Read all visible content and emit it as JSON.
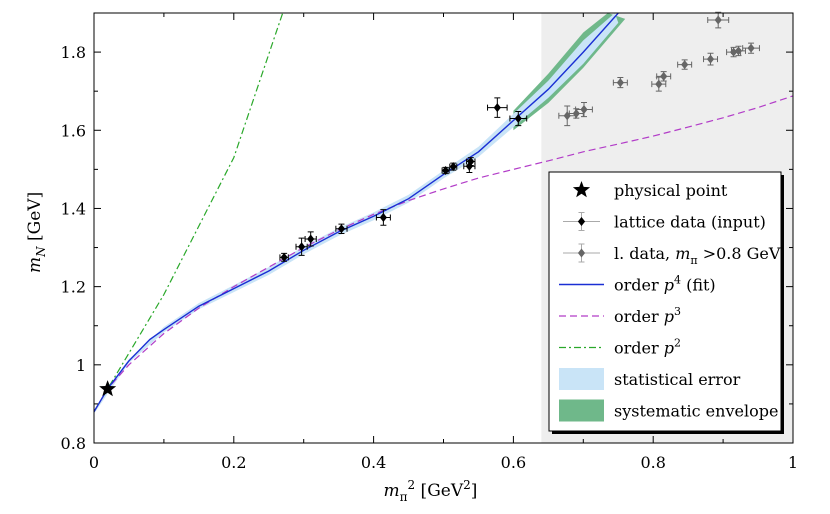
{
  "chart_data": {
    "type": "scatter",
    "xlabel": {
      "main": "m",
      "sub": "π",
      "sup": "2",
      "unit": " [GeV",
      "unit_sup": "2",
      "unit_end": "]"
    },
    "ylabel": {
      "main": "m",
      "sub": "N",
      "unit": "  [GeV]"
    },
    "xlim": [
      0,
      1
    ],
    "ylim": [
      0.8,
      1.9
    ],
    "xticks": [
      "0",
      "0.2",
      "0.4",
      "0.6",
      "0.8",
      "1"
    ],
    "xtick_values": [
      0,
      0.2,
      0.4,
      0.6,
      0.8,
      1.0
    ],
    "yticks": [
      "0.8",
      "1",
      "1.2",
      "1.4",
      "1.6",
      "1.8"
    ],
    "ytick_values": [
      0.8,
      1.0,
      1.2,
      1.4,
      1.6,
      1.8
    ],
    "shaded_region": {
      "x_from": 0.64,
      "x_to": 1.0,
      "color": "#eeeeee"
    },
    "legend_position": "right",
    "legend": [
      {
        "key": "physical",
        "text": "physical point"
      },
      {
        "key": "lattice",
        "text": "lattice data (input)"
      },
      {
        "key": "ldata",
        "text": "l. data, ",
        "italic": "m",
        "sub": "π",
        "tail": " >0.8 GeV"
      },
      {
        "key": "p4",
        "text": "order ",
        "italic": "p",
        "sup": "4",
        "tail": " (fit)"
      },
      {
        "key": "p3",
        "text": "order ",
        "italic": "p",
        "sup": "3",
        "tail": ""
      },
      {
        "key": "p2",
        "text": "order ",
        "italic": "p",
        "sup": "2",
        "tail": ""
      },
      {
        "key": "stat",
        "text": "statistical error"
      },
      {
        "key": "syst",
        "text": "systematic envelope"
      }
    ],
    "colors": {
      "p4": "#1a2fd4",
      "p3": "#b23cc8",
      "p2": "#2aa82a",
      "stat": "#c9e4f7",
      "syst": "#6fb88a",
      "lattice": "#000000",
      "ldata": "#666666",
      "shade": "#eeeeee"
    },
    "physical_point": {
      "x": 0.0195,
      "y": 0.938
    },
    "series": [
      {
        "key": "lattice",
        "points": [
          {
            "x": 0.272,
            "y": 1.275,
            "xerr": 0.006,
            "yerr": 0.01
          },
          {
            "x": 0.297,
            "y": 1.302,
            "xerr": 0.008,
            "yerr": 0.022
          },
          {
            "x": 0.31,
            "y": 1.322,
            "xerr": 0.008,
            "yerr": 0.018
          },
          {
            "x": 0.354,
            "y": 1.348,
            "xerr": 0.008,
            "yerr": 0.012
          },
          {
            "x": 0.414,
            "y": 1.377,
            "xerr": 0.01,
            "yerr": 0.02
          },
          {
            "x": 0.503,
            "y": 1.497,
            "xerr": 0.005,
            "yerr": 0.008
          },
          {
            "x": 0.514,
            "y": 1.507,
            "xerr": 0.005,
            "yerr": 0.009
          },
          {
            "x": 0.537,
            "y": 1.508,
            "xerr": 0.008,
            "yerr": 0.016
          },
          {
            "x": 0.539,
            "y": 1.52,
            "xerr": 0.006,
            "yerr": 0.01
          },
          {
            "x": 0.577,
            "y": 1.658,
            "xerr": 0.014,
            "yerr": 0.025
          },
          {
            "x": 0.607,
            "y": 1.63,
            "xerr": 0.012,
            "yerr": 0.018
          }
        ]
      },
      {
        "key": "ldata",
        "points": [
          {
            "x": 0.677,
            "y": 1.637,
            "xerr": 0.012,
            "yerr": 0.025
          },
          {
            "x": 0.69,
            "y": 1.643,
            "xerr": 0.01,
            "yerr": 0.012
          },
          {
            "x": 0.701,
            "y": 1.653,
            "xerr": 0.012,
            "yerr": 0.018
          },
          {
            "x": 0.753,
            "y": 1.722,
            "xerr": 0.01,
            "yerr": 0.013
          },
          {
            "x": 0.808,
            "y": 1.718,
            "xerr": 0.01,
            "yerr": 0.018
          },
          {
            "x": 0.815,
            "y": 1.738,
            "xerr": 0.01,
            "yerr": 0.012
          },
          {
            "x": 0.845,
            "y": 1.768,
            "xerr": 0.01,
            "yerr": 0.012
          },
          {
            "x": 0.882,
            "y": 1.782,
            "xerr": 0.01,
            "yerr": 0.015
          },
          {
            "x": 0.893,
            "y": 1.882,
            "xerr": 0.015,
            "yerr": 0.02
          },
          {
            "x": 0.915,
            "y": 1.8,
            "xerr": 0.01,
            "yerr": 0.012
          },
          {
            "x": 0.922,
            "y": 1.803,
            "xerr": 0.01,
            "yerr": 0.012
          },
          {
            "x": 0.94,
            "y": 1.81,
            "xerr": 0.012,
            "yerr": 0.013
          }
        ]
      }
    ],
    "curves": {
      "p4": {
        "x": [
          0,
          0.02,
          0.05,
          0.08,
          0.1,
          0.15,
          0.2,
          0.25,
          0.3,
          0.35,
          0.4,
          0.45,
          0.5,
          0.55,
          0.6,
          0.65,
          0.7,
          0.75
        ],
        "y": [
          0.88,
          0.94,
          1.01,
          1.065,
          1.09,
          1.15,
          1.195,
          1.24,
          1.293,
          1.34,
          1.38,
          1.425,
          1.487,
          1.545,
          1.625,
          1.705,
          1.8,
          1.9
        ]
      },
      "p3": {
        "x": [
          0,
          0.02,
          0.05,
          0.1,
          0.15,
          0.2,
          0.25,
          0.3,
          0.35,
          0.4,
          0.45,
          0.5,
          0.55,
          0.6,
          0.65,
          0.7,
          0.75,
          0.8,
          0.85,
          0.9,
          0.95,
          1.0
        ],
        "y": [
          0.88,
          0.94,
          1.0,
          1.08,
          1.145,
          1.2,
          1.25,
          1.3,
          1.345,
          1.385,
          1.42,
          1.45,
          1.478,
          1.5,
          1.522,
          1.545,
          1.565,
          1.585,
          1.608,
          1.632,
          1.658,
          1.688
        ]
      },
      "p2": {
        "x": [
          0,
          0.02,
          0.1,
          0.2,
          0.27
        ],
        "y": [
          0.88,
          0.94,
          1.18,
          1.53,
          1.9
        ]
      },
      "stat_upper": {
        "x": [
          0,
          0.05,
          0.1,
          0.15,
          0.2,
          0.25,
          0.3,
          0.35,
          0.4,
          0.45,
          0.5,
          0.55,
          0.6,
          0.65,
          0.7,
          0.745
        ],
        "y": [
          0.885,
          1.015,
          1.097,
          1.158,
          1.204,
          1.25,
          1.303,
          1.35,
          1.39,
          1.435,
          1.497,
          1.558,
          1.642,
          1.727,
          1.83,
          1.9
        ]
      },
      "stat_lower": {
        "x": [
          0,
          0.05,
          0.1,
          0.15,
          0.2,
          0.25,
          0.3,
          0.35,
          0.4,
          0.45,
          0.5,
          0.55,
          0.6,
          0.65,
          0.7,
          0.75
        ],
        "y": [
          0.875,
          1.005,
          1.083,
          1.142,
          1.186,
          1.23,
          1.283,
          1.33,
          1.37,
          1.415,
          1.477,
          1.532,
          1.608,
          1.683,
          1.77,
          1.875
        ]
      },
      "syst_upper": {
        "x": [
          0.6,
          0.65,
          0.7,
          0.735
        ],
        "y": [
          1.65,
          1.745,
          1.85,
          1.9
        ]
      },
      "syst_lower": {
        "x": [
          0.6,
          0.65,
          0.7,
          0.76
        ],
        "y": [
          1.6,
          1.67,
          1.76,
          1.885
        ]
      }
    }
  }
}
